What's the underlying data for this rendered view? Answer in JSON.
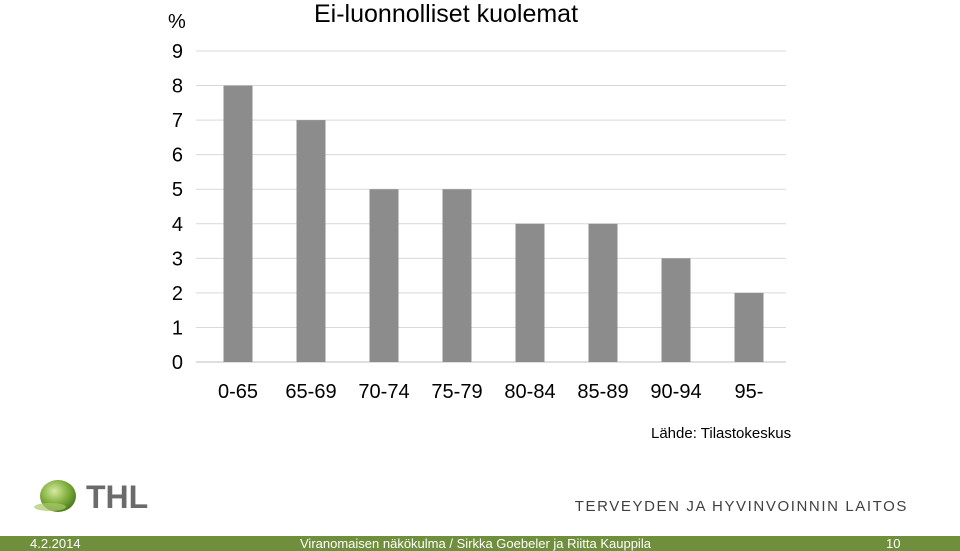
{
  "chart_data": {
    "type": "bar",
    "title": "Ei-luonnolliset kuolemat",
    "unit_label": "%",
    "categories": [
      "0-65",
      "65-69",
      "70-74",
      "75-79",
      "80-84",
      "85-89",
      "90-94",
      "95-"
    ],
    "values": [
      8,
      7,
      5,
      5,
      4,
      4,
      3,
      2
    ],
    "yticks": [
      "0",
      "1",
      "2",
      "3",
      "4",
      "5",
      "6",
      "7",
      "8",
      "9"
    ],
    "ylim": [
      0,
      9
    ],
    "grid": true,
    "bar_color": "#8c8c8c",
    "source": "Lähde: Tilastokeskus"
  },
  "branding": {
    "logo_text": "THL",
    "org_name": "TERVEYDEN JA HYVINVOINNIN LAITOS",
    "accent_color": "#6f8f3c"
  },
  "footer": {
    "date": "4.2.2014",
    "center_text": "Viranomaisen näkökulma / Sirkka Goebeler ja Riitta Kauppila",
    "page_number": "10"
  }
}
